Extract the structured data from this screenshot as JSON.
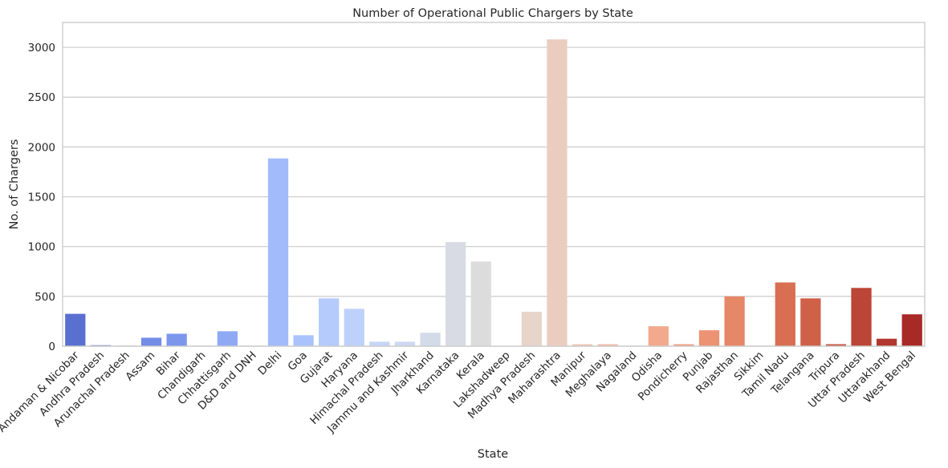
{
  "chart_data": {
    "type": "bar",
    "title": "Number of Operational Public Chargers by State",
    "xlabel": "State",
    "ylabel": "No. of Chargers",
    "ylim": [
      0,
      3250
    ],
    "yticks": [
      0,
      500,
      1000,
      1500,
      2000,
      2500,
      3000
    ],
    "grid": true,
    "categories": [
      "Andaman & Nicobar",
      "Andhra Pradesh",
      "Arunachal Pradesh",
      "Assam",
      "Bihar",
      "Chandigarh",
      "Chhattisgarh",
      "D&D and DNH",
      "Delhi",
      "Goa",
      "Gujarat",
      "Haryana",
      "Himachal Pradesh",
      "Jammu and Kashmir",
      "Jharkhand",
      "Karnataka",
      "Kerala",
      "Lakshadweep",
      "Madhya Pradesh",
      "Maharashtra",
      "Manipur",
      "Meghalaya",
      "Nagaland",
      "Odisha",
      "Pondicherry",
      "Punjab",
      "Rajasthan",
      "Sikkim",
      "Tamil Nadu",
      "Telangana",
      "Tripura",
      "Uttar Pradesh",
      "Uttarakhand",
      "West Bengal"
    ],
    "values": [
      325,
      10,
      5,
      85,
      125,
      5,
      150,
      5,
      1885,
      110,
      480,
      375,
      45,
      45,
      135,
      1045,
      850,
      2,
      345,
      3080,
      20,
      20,
      5,
      200,
      20,
      160,
      500,
      5,
      640,
      480,
      20,
      585,
      75,
      320
    ],
    "colors": [
      "#5a70d0",
      "#6279d8",
      "#6b83df",
      "#738ce6",
      "#7c96ec",
      "#86a0f2",
      "#8fa9f5",
      "#99b2f8",
      "#a2bbfa",
      "#abc3fc",
      "#b4cbfc",
      "#bdd1fa",
      "#c6d6f6",
      "#cdd9f0",
      "#d3dbe9",
      "#d8dbe3",
      "#dcdcdd",
      "#e3d9d3",
      "#e7d4ca",
      "#ebcdc0",
      "#eec5b4",
      "#f0bca8",
      "#f2b39b",
      "#f2a98d",
      "#f09f81",
      "#ec9374",
      "#e68768",
      "#e07b5d",
      "#d86e52",
      "#cf6148",
      "#c5533f",
      "#bb4536",
      "#b1362e",
      "#a72a27"
    ]
  }
}
